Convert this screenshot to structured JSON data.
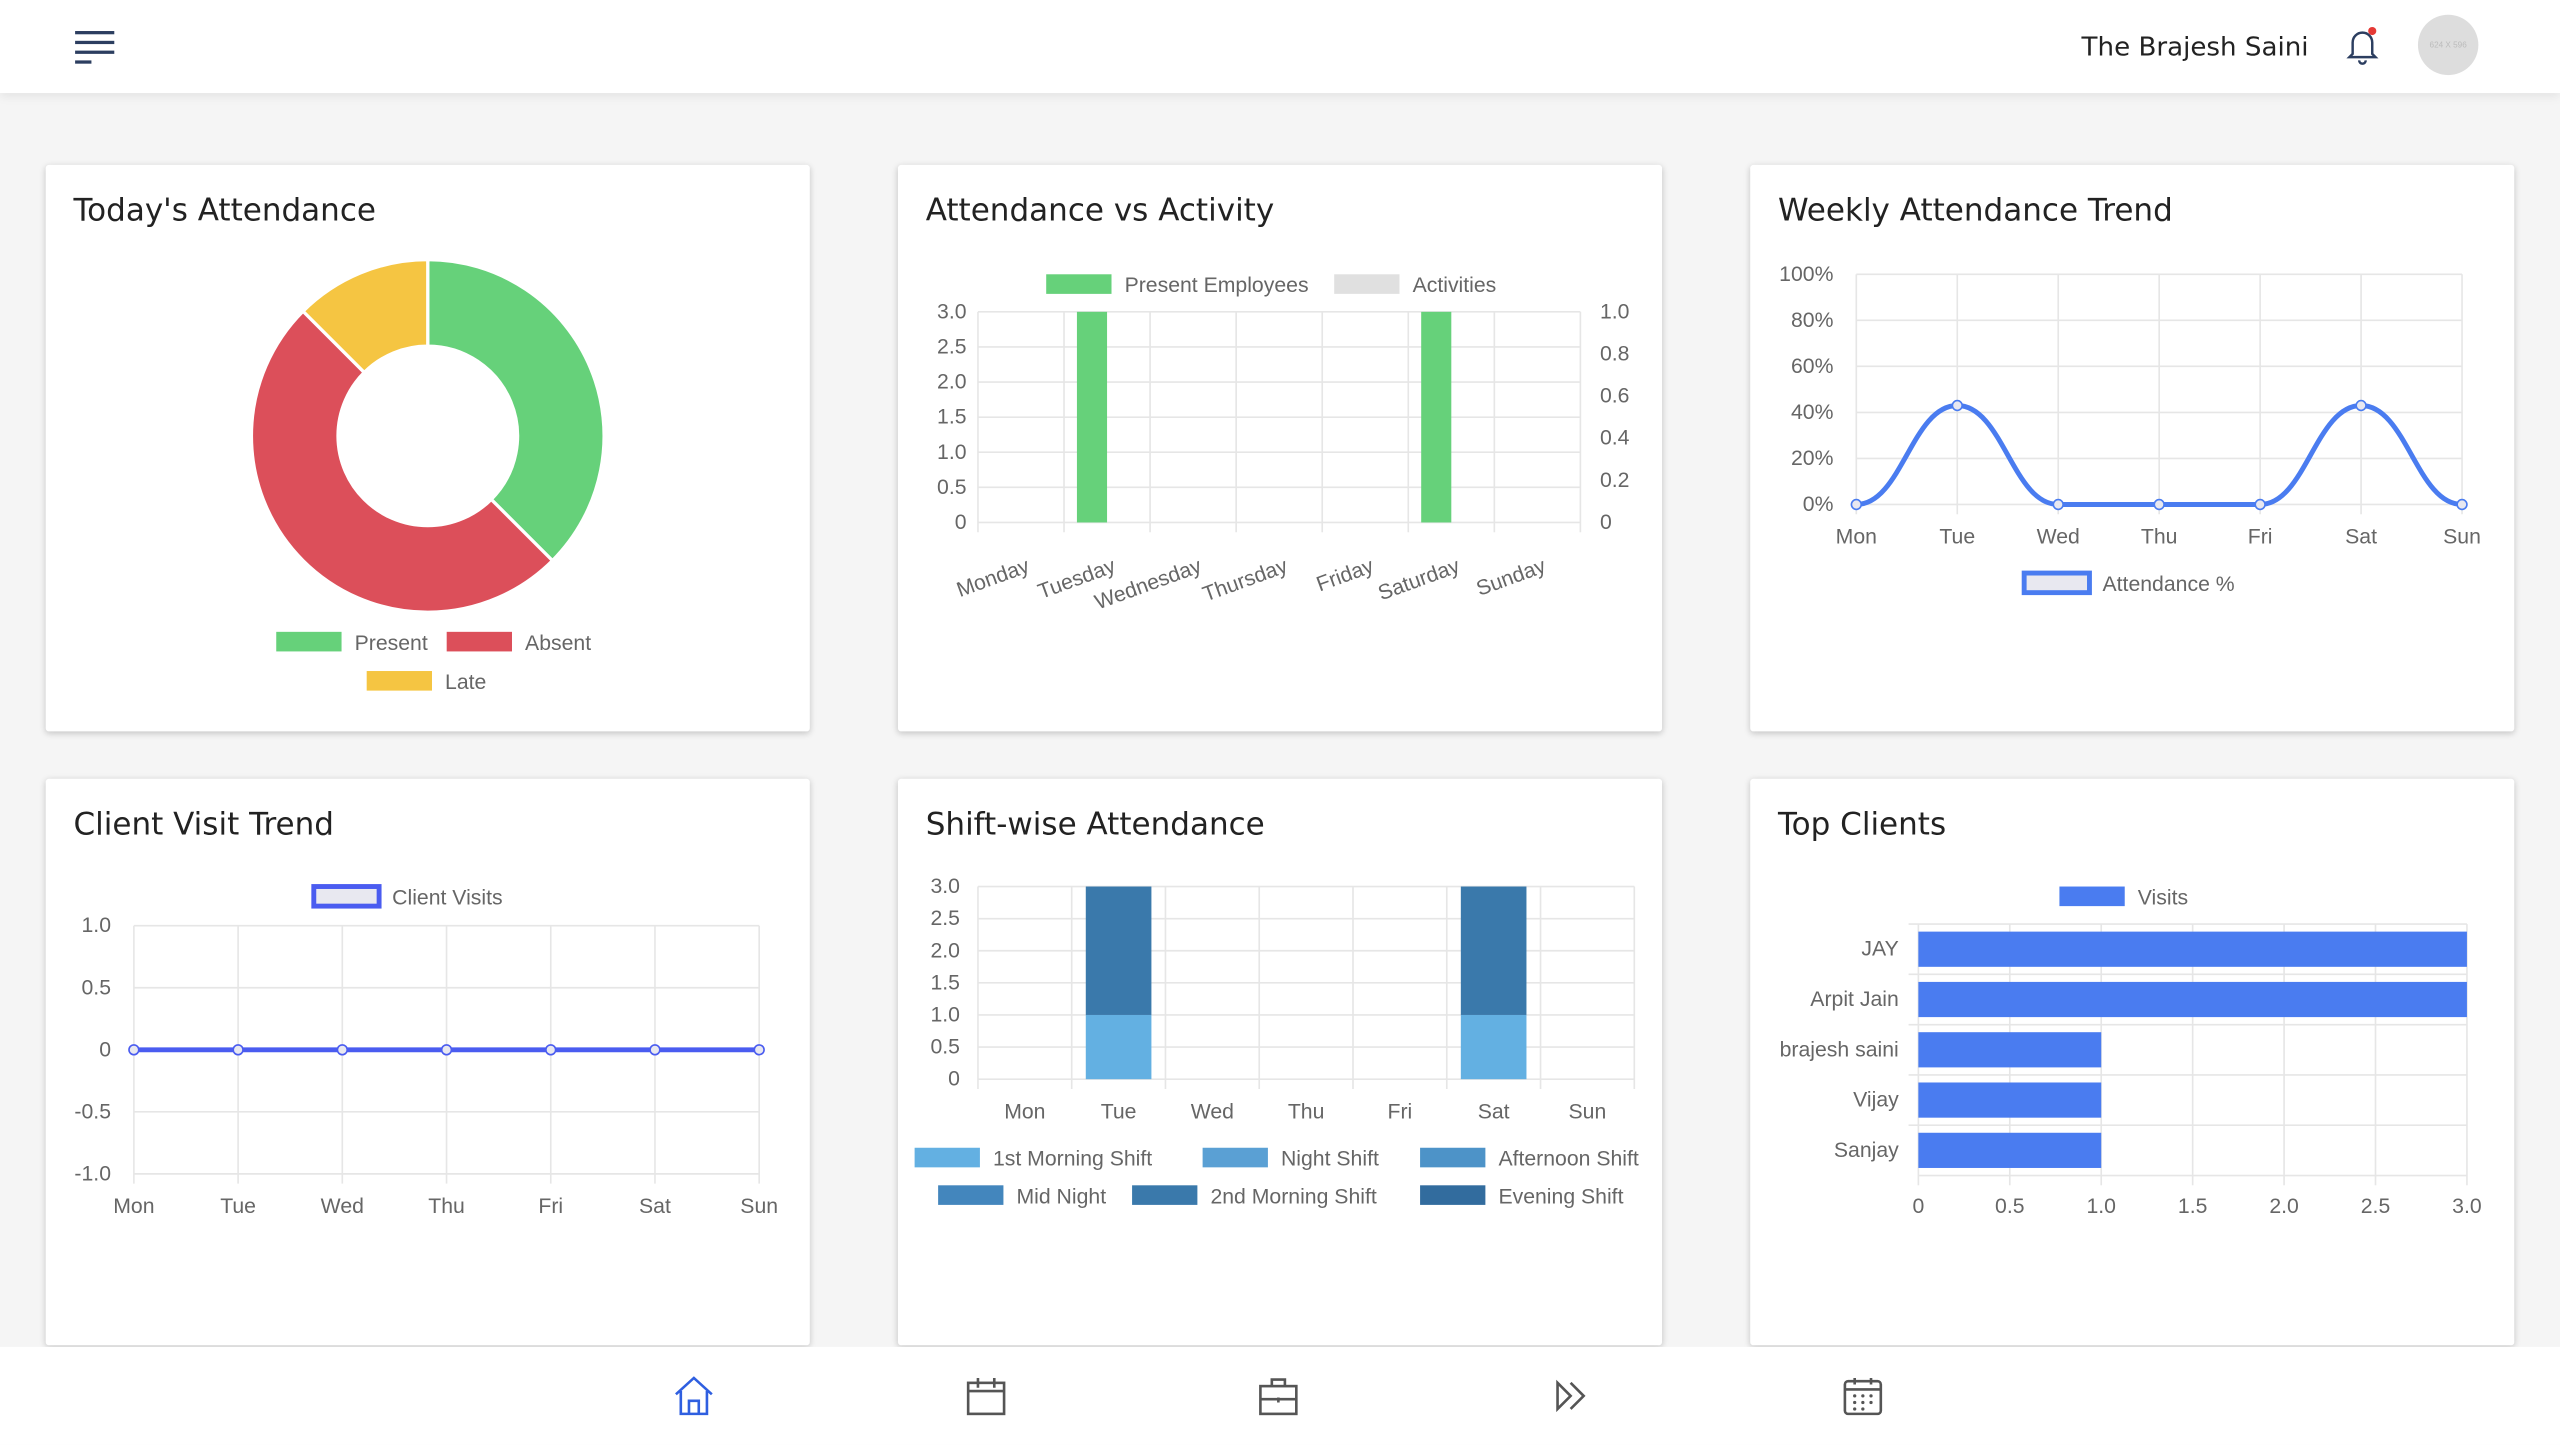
{
  "header": {
    "user_name": "The Brajesh Saini",
    "avatar_text": "624 X 596",
    "icons": [
      "menu-icon",
      "bell-icon"
    ],
    "notification_dot_color": "#e53935"
  },
  "cards": {
    "todays_attendance": {
      "title": "Today's Attendance"
    },
    "attendance_vs_activity": {
      "title": "Attendance vs Activity"
    },
    "weekly_trend": {
      "title": "Weekly Attendance Trend"
    },
    "client_visit": {
      "title": "Client Visit Trend"
    },
    "shift_wise": {
      "title": "Shift-wise Attendance"
    },
    "top_clients": {
      "title": "Top Clients"
    }
  },
  "chart_data": [
    {
      "type": "pie",
      "variant": "doughnut",
      "categories": [
        "Present",
        "Absent",
        "Late"
      ],
      "values": [
        3,
        4,
        1
      ],
      "colors": [
        "#66d17a",
        "#dc4f5a",
        "#f5c542"
      ],
      "legend": "bottom"
    },
    {
      "type": "bar",
      "categories": [
        "Monday",
        "Tuesday",
        "Wednesday",
        "Thursday",
        "Friday",
        "Saturday",
        "Sunday"
      ],
      "series": [
        {
          "name": "Present Employees",
          "values": [
            0,
            3,
            0,
            0,
            0,
            3,
            0
          ],
          "color": "#66d17a",
          "axis": "left"
        },
        {
          "name": "Activities",
          "values": [
            0,
            0,
            0,
            0,
            0,
            0,
            0
          ],
          "color": "#e0e0e0",
          "axis": "right"
        }
      ],
      "yticks_left": [
        "3.0",
        "2.5",
        "2.0",
        "1.5",
        "1.0",
        "0.5",
        "0"
      ],
      "yticks_right": [
        "1.0",
        "0.8",
        "0.6",
        "0.4",
        "0.2",
        "0"
      ],
      "ylim": [
        0,
        3
      ],
      "ylim_right": [
        0,
        1
      ],
      "grid": true,
      "legend": "top"
    },
    {
      "type": "line",
      "categories": [
        "Mon",
        "Tue",
        "Wed",
        "Thu",
        "Fri",
        "Sat",
        "Sun"
      ],
      "series": [
        {
          "name": "Attendance %",
          "values": [
            0,
            43,
            0,
            0,
            0,
            43,
            0
          ],
          "color": "#4a7cf0"
        }
      ],
      "yticks": [
        "100%",
        "80%",
        "60%",
        "40%",
        "20%",
        "0%"
      ],
      "ylim": [
        0,
        100
      ],
      "grid": true,
      "legend": "bottom"
    },
    {
      "type": "line",
      "categories": [
        "Mon",
        "Tue",
        "Wed",
        "Thu",
        "Fri",
        "Sat",
        "Sun"
      ],
      "series": [
        {
          "name": "Client Visits",
          "values": [
            0,
            0,
            0,
            0,
            0,
            0,
            0
          ],
          "color": "#4a5cf0"
        }
      ],
      "yticks": [
        "1.0",
        "0.5",
        "0",
        "-0.5",
        "-1.0"
      ],
      "ylim": [
        -1,
        1
      ],
      "grid": true,
      "legend": "top"
    },
    {
      "type": "bar",
      "stacked": true,
      "categories": [
        "Mon",
        "Tue",
        "Wed",
        "Thu",
        "Fri",
        "Sat",
        "Sun"
      ],
      "series": [
        {
          "name": "1st Morning Shift",
          "values": [
            0,
            1,
            0,
            0,
            0,
            1,
            0
          ],
          "color": "#63b0e2"
        },
        {
          "name": "Night Shift",
          "values": [
            0,
            0,
            0,
            0,
            0,
            0,
            0
          ],
          "color": "#5aa0d4"
        },
        {
          "name": "Afternoon Shift",
          "values": [
            0,
            0,
            0,
            0,
            0,
            0,
            0
          ],
          "color": "#4d93c8"
        },
        {
          "name": "Mid Night",
          "values": [
            0,
            0,
            0,
            0,
            0,
            0,
            0
          ],
          "color": "#4386bd"
        },
        {
          "name": "2nd Morning Shift",
          "values": [
            0,
            2,
            0,
            0,
            0,
            2,
            0
          ],
          "color": "#3a79ab"
        },
        {
          "name": "Evening Shift",
          "values": [
            0,
            0,
            0,
            0,
            0,
            0,
            0
          ],
          "color": "#326c9e"
        }
      ],
      "yticks": [
        "3.0",
        "2.5",
        "2.0",
        "1.5",
        "1.0",
        "0.5",
        "0"
      ],
      "ylim": [
        0,
        3
      ],
      "grid": true,
      "legend": "bottom"
    },
    {
      "type": "bar",
      "orientation": "horizontal",
      "categories": [
        "JAY",
        "Arpit Jain",
        "brajesh saini",
        "Vijay",
        "Sanjay"
      ],
      "series": [
        {
          "name": "Visits",
          "values": [
            3,
            3,
            1,
            1,
            1
          ],
          "color": "#4a7cf0"
        }
      ],
      "xticks": [
        "0",
        "0.5",
        "1.0",
        "1.5",
        "2.0",
        "2.5",
        "3.0"
      ],
      "xlim": [
        0,
        3
      ],
      "grid": true,
      "legend": "top"
    }
  ],
  "bottom_nav": {
    "items": [
      {
        "icon": "home-icon",
        "active": true
      },
      {
        "icon": "calendar-icon"
      },
      {
        "icon": "briefcase-icon"
      },
      {
        "icon": "fast-forward-icon"
      },
      {
        "icon": "schedule-icon"
      }
    ],
    "active_color": "#2f5fe0",
    "color": "#555555"
  }
}
